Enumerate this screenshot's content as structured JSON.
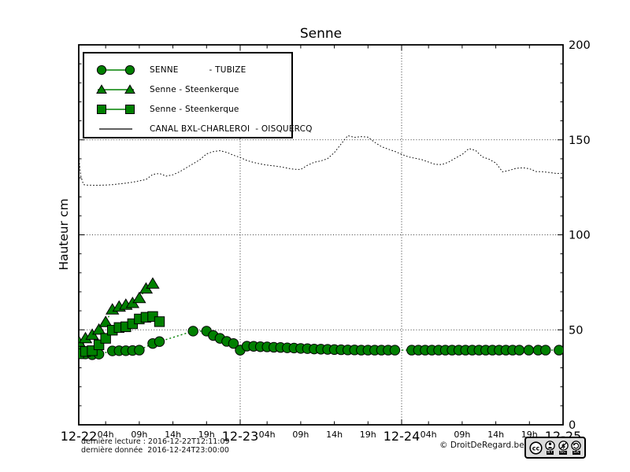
{
  "chart_data": {
    "type": "line",
    "title": "Senne",
    "xlabel": "",
    "ylabel": "Hauteur cm",
    "ylim": [
      0,
      200
    ],
    "x_hours_range": [
      0,
      72
    ],
    "grid": {
      "h_values": [
        50,
        100,
        150
      ],
      "v_hours": [
        24,
        48
      ]
    },
    "legend_position": "upper left",
    "y_ticks": [
      {
        "v": 0,
        "label": "0"
      },
      {
        "v": 50,
        "label": "50"
      },
      {
        "v": 100,
        "label": "100"
      },
      {
        "v": 150,
        "label": "150"
      },
      {
        "v": 200,
        "label": "200"
      }
    ],
    "x_major_ticks": [
      {
        "t": 0,
        "label": "12-22"
      },
      {
        "t": 24,
        "label": "12-23"
      },
      {
        "t": 48,
        "label": "12-24"
      },
      {
        "t": 72,
        "label": "12-25"
      }
    ],
    "x_minor_ticks": [
      {
        "t": 4,
        "label": "04h"
      },
      {
        "t": 9,
        "label": "09h"
      },
      {
        "t": 14,
        "label": "14h"
      },
      {
        "t": 19,
        "label": "19h"
      },
      {
        "t": 28,
        "label": "04h"
      },
      {
        "t": 33,
        "label": "09h"
      },
      {
        "t": 38,
        "label": "14h"
      },
      {
        "t": 43,
        "label": "19h"
      },
      {
        "t": 52,
        "label": "04h"
      },
      {
        "t": 57,
        "label": "09h"
      },
      {
        "t": 62,
        "label": "14h"
      },
      {
        "t": 67,
        "label": "19h"
      }
    ],
    "series": [
      {
        "name": "SENNE           - TUBIZE",
        "marker": "circle",
        "color": "#008000",
        "edge_color": "#000000",
        "line_dash": "2 3",
        "points": [
          [
            0,
            42.3
          ],
          [
            1,
            37.3
          ],
          [
            2,
            36.9
          ],
          [
            3,
            37.2
          ],
          [
            5,
            38.9
          ],
          [
            6,
            39
          ],
          [
            7,
            39
          ],
          [
            8,
            39.1
          ],
          [
            9,
            39.3
          ],
          [
            11,
            42.8
          ],
          [
            12,
            43.8
          ],
          [
            17,
            49.3
          ],
          [
            19,
            49.3
          ],
          [
            20,
            47
          ],
          [
            21,
            45.5
          ],
          [
            22,
            43.9
          ],
          [
            23,
            42.8
          ],
          [
            24,
            39.3
          ],
          [
            25,
            41.4
          ],
          [
            26,
            41.3
          ],
          [
            27,
            41.1
          ],
          [
            28,
            41
          ],
          [
            29,
            40.8
          ],
          [
            30,
            40.7
          ],
          [
            31,
            40.5
          ],
          [
            32,
            40.4
          ],
          [
            33,
            40.2
          ],
          [
            34,
            40.1
          ],
          [
            35,
            39.9
          ],
          [
            36,
            39.8
          ],
          [
            37,
            39.7
          ],
          [
            38,
            39.6
          ],
          [
            39,
            39.5
          ],
          [
            40,
            39.4
          ],
          [
            41,
            39.4
          ],
          [
            42,
            39.3
          ],
          [
            43,
            39.3
          ],
          [
            44,
            39.3
          ],
          [
            45,
            39.3
          ],
          [
            46,
            39.3
          ],
          [
            47,
            39.3
          ],
          [
            49.5,
            39.3
          ],
          [
            50.5,
            39.3
          ],
          [
            51.5,
            39.3
          ],
          [
            52.5,
            39.3
          ],
          [
            53.5,
            39.3
          ],
          [
            54.5,
            39.3
          ],
          [
            55.5,
            39.3
          ],
          [
            56.5,
            39.3
          ],
          [
            57.5,
            39.3
          ],
          [
            58.5,
            39.3
          ],
          [
            59.5,
            39.3
          ],
          [
            60.5,
            39.3
          ],
          [
            61.5,
            39.3
          ],
          [
            62.5,
            39.3
          ],
          [
            63.5,
            39.3
          ],
          [
            64.5,
            39.3
          ],
          [
            65.5,
            39.3
          ],
          [
            66.9,
            39.3
          ],
          [
            68.3,
            39.3
          ],
          [
            69.4,
            39.3
          ],
          [
            71.4,
            39.3
          ]
        ]
      },
      {
        "name": "Senne - Steenkerque",
        "marker": "triangle",
        "color": "#008000",
        "edge_color": "#000000",
        "line_dash": "2 3",
        "points": [
          [
            0,
            43.6
          ],
          [
            1,
            45.5
          ],
          [
            2,
            47.3
          ],
          [
            3,
            50
          ],
          [
            4,
            54
          ],
          [
            5,
            60.6
          ],
          [
            6,
            62.1
          ],
          [
            7,
            63.1
          ],
          [
            8,
            64
          ],
          [
            9,
            66.6
          ],
          [
            10,
            71.6
          ],
          [
            11,
            74.2
          ]
        ]
      },
      {
        "name": "Senne - Steenkerque",
        "marker": "square",
        "color": "#008000",
        "edge_color": "#000000",
        "line_dash": "2 3",
        "points": [
          [
            0,
            37.4
          ],
          [
            1,
            38.6
          ],
          [
            2,
            39
          ],
          [
            3,
            42.1
          ],
          [
            4,
            45.5
          ],
          [
            5,
            49.8
          ],
          [
            6,
            51.2
          ],
          [
            7,
            51.6
          ],
          [
            8,
            53.2
          ],
          [
            9,
            55.7
          ],
          [
            10,
            56.6
          ],
          [
            11,
            57
          ],
          [
            12,
            54.3
          ]
        ]
      },
      {
        "name": "CANAL BXL-CHARLEROI  - OISQUERCQ",
        "marker": "none",
        "color": "#000000",
        "edge_color": "#000000",
        "line_dash": "1.6 2.4",
        "points": [
          [
            0,
            141
          ],
          [
            0.3,
            131
          ],
          [
            0.7,
            126.5
          ],
          [
            1,
            126.2
          ],
          [
            2,
            126.1
          ],
          [
            3,
            126.1
          ],
          [
            4,
            126.2
          ],
          [
            5,
            126.4
          ],
          [
            6,
            126.8
          ],
          [
            7,
            127.2
          ],
          [
            8,
            127.7
          ],
          [
            9,
            128.4
          ],
          [
            10,
            129.1
          ],
          [
            11,
            131.8
          ],
          [
            12,
            132.3
          ],
          [
            13,
            130.9
          ],
          [
            14,
            131.6
          ],
          [
            15,
            133.2
          ],
          [
            16,
            135.3
          ],
          [
            17,
            137.4
          ],
          [
            18,
            139.5
          ],
          [
            19,
            142.6
          ],
          [
            20,
            143.8
          ],
          [
            21,
            144.3
          ],
          [
            22,
            143.4
          ],
          [
            23,
            141.9
          ],
          [
            24,
            140.7
          ],
          [
            25,
            139.1
          ],
          [
            26,
            138.1
          ],
          [
            27,
            137.3
          ],
          [
            28,
            136.7
          ],
          [
            29,
            136.3
          ],
          [
            30,
            135.8
          ],
          [
            31,
            135.1
          ],
          [
            32,
            134.5
          ],
          [
            33,
            134.4
          ],
          [
            34,
            136.6
          ],
          [
            35,
            138.2
          ],
          [
            36,
            138.9
          ],
          [
            37,
            140.1
          ],
          [
            38,
            143.3
          ],
          [
            39,
            147.8
          ],
          [
            40,
            152.2
          ],
          [
            41,
            151.3
          ],
          [
            42,
            151.7
          ],
          [
            43,
            151.4
          ],
          [
            44,
            148.7
          ],
          [
            45,
            146.4
          ],
          [
            46,
            145.1
          ],
          [
            47,
            143.9
          ],
          [
            48,
            142.4
          ],
          [
            49,
            141
          ],
          [
            50,
            140.3
          ],
          [
            51,
            139.6
          ],
          [
            52,
            138.3
          ],
          [
            53,
            137.1
          ],
          [
            54,
            137
          ],
          [
            55,
            138.3
          ],
          [
            56,
            140.4
          ],
          [
            57,
            142.3
          ],
          [
            58,
            145.4
          ],
          [
            59,
            144.4
          ],
          [
            60,
            141
          ],
          [
            61,
            139.8
          ],
          [
            62,
            137.8
          ],
          [
            63,
            133.2
          ],
          [
            64,
            133.9
          ],
          [
            65,
            135
          ],
          [
            66,
            135.3
          ],
          [
            67,
            134.8
          ],
          [
            68,
            133.3
          ],
          [
            69,
            133.2
          ],
          [
            70,
            132.8
          ],
          [
            71,
            132.3
          ],
          [
            72,
            132.4
          ]
        ]
      }
    ]
  },
  "footer": {
    "line1": "dernière lecture : 2016-12-22T12:11:09",
    "line2": "dernière donnée  2016-12-24T23:00:00"
  },
  "credit": {
    "copyright": "© DroitDeRegard.be",
    "badge": {
      "cc": "cc",
      "by": "BY",
      "nc": "NC",
      "sa": "SA"
    }
  }
}
